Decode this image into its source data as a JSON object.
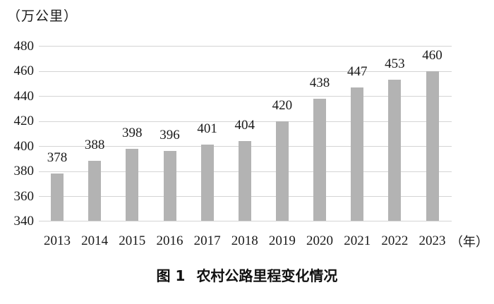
{
  "figure": {
    "unit_label": "（万公里）",
    "x_axis_suffix": "（年）",
    "caption_label": "图 1",
    "caption_text": "农村公路里程变化情况"
  },
  "chart_data": {
    "type": "bar",
    "title": "图1 农村公路里程变化情况",
    "categories": [
      "2013",
      "2014",
      "2015",
      "2016",
      "2017",
      "2018",
      "2019",
      "2020",
      "2021",
      "2022",
      "2023"
    ],
    "values": [
      378,
      388,
      398,
      396,
      401,
      404,
      420,
      438,
      447,
      453,
      460
    ],
    "xlabel": "年",
    "ylabel": "万公里",
    "ylim": [
      340,
      480
    ],
    "ytick_step": 20,
    "yticks": [
      340,
      360,
      380,
      400,
      420,
      440,
      460,
      480
    ],
    "grid": true,
    "legend": false,
    "data_labels": true,
    "bar_color": "#b3b3b3",
    "gridline_color": "#d4d4d4",
    "text_color": "#1a1a1a"
  }
}
